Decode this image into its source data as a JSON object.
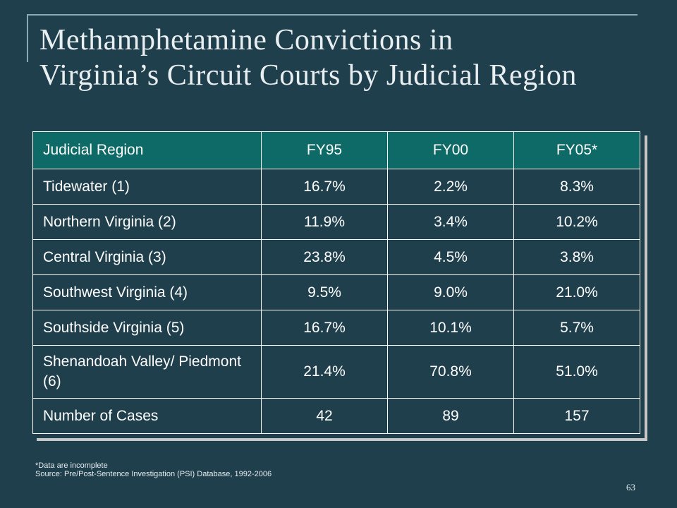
{
  "slide": {
    "title_line1": "Methamphetamine Convictions in",
    "title_line2": "Virginia’s Circuit Courts by Judicial Region",
    "page_number": "63"
  },
  "table": {
    "headers": [
      "Judicial Region",
      "FY95",
      "FY00",
      "FY05*"
    ],
    "rows": [
      [
        "Tidewater (1)",
        "16.7%",
        "2.2%",
        "8.3%"
      ],
      [
        "Northern Virginia (2)",
        "11.9%",
        "3.4%",
        "10.2%"
      ],
      [
        "Central Virginia (3)",
        "23.8%",
        "4.5%",
        "3.8%"
      ],
      [
        "Southwest Virginia (4)",
        "9.5%",
        "9.0%",
        "21.0%"
      ],
      [
        "Southside Virginia (5)",
        "16.7%",
        "10.1%",
        "5.7%"
      ],
      [
        "Shenandoah Valley/ Piedmont (6)",
        "21.4%",
        "70.8%",
        "51.0%"
      ],
      [
        "Number of Cases",
        "42",
        "89",
        "157"
      ]
    ]
  },
  "footnotes": {
    "note": "*Data are incomplete",
    "source": "Source:  Pre/Post-Sentence Investigation (PSI) Database, 1992-2006"
  },
  "colors": {
    "background": "#1f3f4d",
    "header_fill": "#0e6a67",
    "rule": "#8aa8b5"
  }
}
